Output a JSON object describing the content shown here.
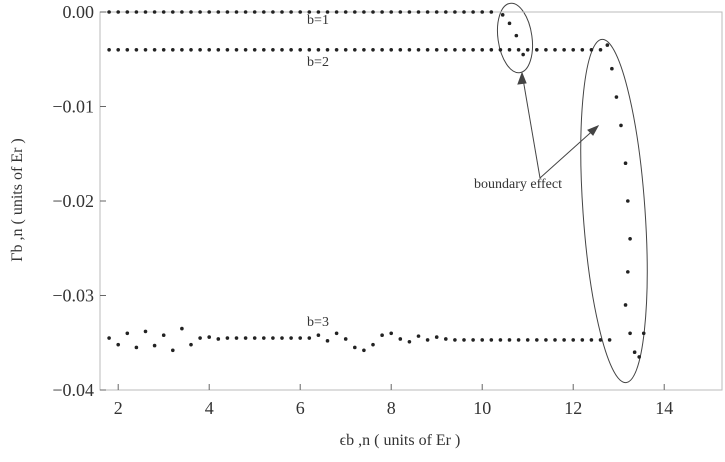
{
  "chart_data": {
    "type": "scatter",
    "xlabel": "ϵb ,n ( units of Er )",
    "ylabel": "Γb ,n ( units of Er )",
    "annotations": [
      "boundary effect"
    ],
    "xlim": [
      1.6,
      15.27
    ],
    "ylim": [
      -0.04,
      0.0
    ],
    "xticks": [
      2,
      4,
      6,
      8,
      10,
      12,
      14
    ],
    "yticks": [
      {
        "value": 0.0,
        "label": "0.00"
      },
      {
        "value": -0.01,
        "label": "−0.01"
      },
      {
        "value": -0.02,
        "label": "−0.02"
      },
      {
        "value": -0.03,
        "label": "−0.03"
      },
      {
        "value": -0.04,
        "label": "−0.04"
      }
    ],
    "series": [
      {
        "name": "b=1",
        "color": "#222222",
        "x": [
          1.8,
          2,
          2.2,
          2.4,
          2.6,
          2.8,
          3,
          3.2,
          3.4,
          3.6,
          3.8,
          4,
          4.2,
          4.4,
          4.6,
          4.8,
          5,
          5.2,
          5.4,
          5.6,
          5.8,
          6,
          6.2,
          6.4,
          6.6,
          6.8,
          7,
          7.2,
          7.4,
          7.6,
          7.8,
          8,
          8.2,
          8.4,
          8.6,
          8.8,
          9,
          9.2,
          9.4,
          9.6,
          9.8,
          10,
          10.2,
          10.45,
          10.6,
          10.75,
          10.9
        ],
        "values": [
          0,
          0,
          0,
          0,
          0,
          0,
          0,
          0,
          0,
          0,
          0,
          0,
          0,
          0,
          0,
          0,
          0,
          0,
          0,
          0,
          0,
          0,
          0,
          0,
          0,
          0,
          0,
          0,
          0,
          0,
          0,
          0,
          0,
          0,
          0,
          0,
          0,
          0,
          0,
          0,
          0,
          0,
          0,
          -0.0003,
          -0.0012,
          -0.0025,
          -0.0045
        ]
      },
      {
        "name": "b=2",
        "color": "#222222",
        "x": [
          1.8,
          2,
          2.2,
          2.4,
          2.6,
          2.8,
          3,
          3.2,
          3.4,
          3.6,
          3.8,
          4,
          4.2,
          4.4,
          4.6,
          4.8,
          5,
          5.2,
          5.4,
          5.6,
          5.8,
          6,
          6.2,
          6.4,
          6.6,
          6.8,
          7,
          7.2,
          7.4,
          7.6,
          7.8,
          8,
          8.2,
          8.4,
          8.6,
          8.8,
          9,
          9.2,
          9.4,
          9.6,
          9.8,
          10,
          10.2,
          10.4,
          10.6,
          10.8,
          11,
          11.2,
          11.4,
          11.6,
          11.8,
          12,
          12.2,
          12.4,
          12.6,
          12.75,
          12.85,
          12.95,
          13.05,
          13.15,
          13.2,
          13.25,
          13.2,
          13.15,
          13.25,
          13.35,
          13.45,
          13.55
        ],
        "values": [
          -0.004,
          -0.004,
          -0.004,
          -0.004,
          -0.004,
          -0.004,
          -0.004,
          -0.004,
          -0.004,
          -0.004,
          -0.004,
          -0.004,
          -0.004,
          -0.004,
          -0.004,
          -0.004,
          -0.004,
          -0.004,
          -0.004,
          -0.004,
          -0.004,
          -0.004,
          -0.004,
          -0.004,
          -0.004,
          -0.004,
          -0.004,
          -0.004,
          -0.004,
          -0.004,
          -0.004,
          -0.004,
          -0.004,
          -0.004,
          -0.004,
          -0.004,
          -0.004,
          -0.004,
          -0.004,
          -0.004,
          -0.004,
          -0.004,
          -0.004,
          -0.004,
          -0.004,
          -0.004,
          -0.004,
          -0.004,
          -0.004,
          -0.004,
          -0.004,
          -0.004,
          -0.004,
          -0.004,
          -0.004,
          -0.0035,
          -0.006,
          -0.009,
          -0.012,
          -0.016,
          -0.02,
          -0.024,
          -0.0275,
          -0.031,
          -0.034,
          -0.036,
          -0.0365,
          -0.034
        ]
      },
      {
        "name": "b=3",
        "color": "#222222",
        "x": [
          1.8,
          2,
          2.2,
          2.4,
          2.6,
          2.8,
          3,
          3.2,
          3.4,
          3.6,
          3.8,
          4,
          4.2,
          4.4,
          4.6,
          4.8,
          5,
          5.2,
          5.4,
          5.6,
          5.8,
          6,
          6.2,
          6.4,
          6.6,
          6.8,
          7,
          7.2,
          7.4,
          7.6,
          7.8,
          8,
          8.2,
          8.4,
          8.6,
          8.8,
          9,
          9.2,
          9.4,
          9.6,
          9.8,
          10,
          10.2,
          10.4,
          10.6,
          10.8,
          11,
          11.2,
          11.4,
          11.6,
          11.8,
          12,
          12.2,
          12.4,
          12.6,
          12.8
        ],
        "values": [
          -0.0345,
          -0.0352,
          -0.034,
          -0.0355,
          -0.0338,
          -0.0353,
          -0.0342,
          -0.0358,
          -0.0335,
          -0.0352,
          -0.0345,
          -0.0344,
          -0.0346,
          -0.0345,
          -0.0345,
          -0.0345,
          -0.0345,
          -0.0345,
          -0.0345,
          -0.0345,
          -0.0345,
          -0.0345,
          -0.0345,
          -0.0342,
          -0.0348,
          -0.034,
          -0.0346,
          -0.0355,
          -0.0358,
          -0.0352,
          -0.0342,
          -0.034,
          -0.0346,
          -0.0349,
          -0.0343,
          -0.0347,
          -0.0344,
          -0.0346,
          -0.0347,
          -0.0347,
          -0.0347,
          -0.0347,
          -0.0347,
          -0.0347,
          -0.0347,
          -0.0347,
          -0.0347,
          -0.0347,
          -0.0347,
          -0.0347,
          -0.0347,
          -0.0347,
          -0.0347,
          -0.0347,
          -0.0347,
          -0.0347
        ]
      }
    ]
  }
}
